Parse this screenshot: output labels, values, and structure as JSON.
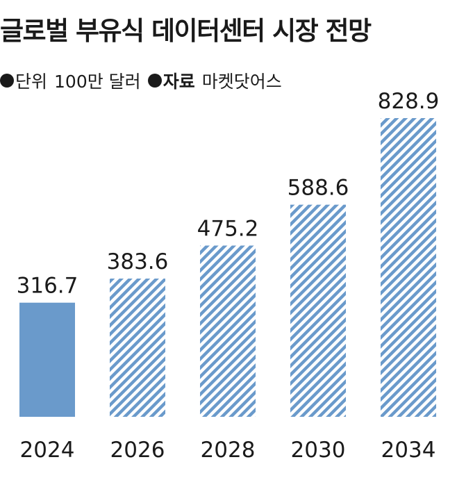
{
  "title": "글로벌 부유식 데이터센터 시장 전망",
  "unit_label": "단위",
  "unit_value": "100만 달러",
  "source_label": "자료",
  "source_value": "마켓닷어스",
  "colors": {
    "bar": "#6a9acb",
    "hatch_bg": "#ffffff",
    "text": "#1a1a1a"
  },
  "chart_data": {
    "type": "bar",
    "categories": [
      "2024",
      "2026",
      "2028",
      "2030",
      "2034"
    ],
    "values": [
      316.7,
      383.6,
      475.2,
      588.6,
      828.9
    ],
    "value_labels": [
      "316.7",
      "383.6",
      "475.2",
      "588.6",
      "828.9"
    ],
    "hatched": [
      false,
      true,
      true,
      true,
      true
    ],
    "title": "글로벌 부유식 데이터센터 시장 전망",
    "xlabel": "",
    "ylabel": "",
    "grid": false,
    "legend": "none"
  }
}
